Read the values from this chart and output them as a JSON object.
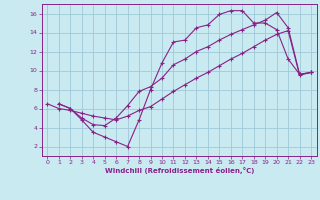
{
  "xlabel": "Windchill (Refroidissement éolien,°C)",
  "xlim": [
    -0.5,
    23.5
  ],
  "ylim": [
    1,
    17
  ],
  "xticks": [
    0,
    1,
    2,
    3,
    4,
    5,
    6,
    7,
    8,
    9,
    10,
    11,
    12,
    13,
    14,
    15,
    16,
    17,
    18,
    19,
    20,
    21,
    22,
    23
  ],
  "yticks": [
    2,
    4,
    6,
    8,
    10,
    12,
    14,
    16
  ],
  "bg_color": "#c8eaf0",
  "grid_color": "#a0c8d8",
  "line_color": "#882288",
  "line1_x": [
    1,
    2,
    3,
    4,
    5,
    6,
    7,
    8,
    9,
    10,
    11,
    12,
    13,
    14,
    15,
    16,
    17,
    18,
    19,
    20,
    21,
    22,
    23
  ],
  "line1_y": [
    6.5,
    6.0,
    4.8,
    3.5,
    3.0,
    2.5,
    2.0,
    4.8,
    8.0,
    10.8,
    13.0,
    13.2,
    14.5,
    14.8,
    15.9,
    16.3,
    16.3,
    15.0,
    15.0,
    14.3,
    11.2,
    9.6,
    9.8
  ],
  "line2_x": [
    1,
    2,
    3,
    4,
    5,
    6,
    7,
    8,
    9,
    10,
    11,
    12,
    13,
    14,
    15,
    16,
    17,
    18,
    19,
    20,
    21,
    22,
    23
  ],
  "line2_y": [
    6.5,
    6.0,
    5.0,
    4.3,
    4.2,
    5.0,
    6.3,
    7.8,
    8.3,
    9.2,
    10.6,
    11.2,
    12.0,
    12.5,
    13.2,
    13.8,
    14.3,
    14.8,
    15.3,
    16.1,
    14.5,
    9.6,
    9.8
  ],
  "line3_x": [
    0,
    1,
    2,
    3,
    4,
    5,
    6,
    7,
    8,
    9,
    10,
    11,
    12,
    13,
    14,
    15,
    16,
    17,
    18,
    19,
    20,
    21,
    22,
    23
  ],
  "line3_y": [
    6.5,
    6.0,
    5.8,
    5.5,
    5.2,
    5.0,
    4.8,
    5.2,
    5.8,
    6.2,
    7.0,
    7.8,
    8.5,
    9.2,
    9.8,
    10.5,
    11.2,
    11.8,
    12.5,
    13.2,
    13.8,
    14.2,
    9.5,
    9.8
  ]
}
